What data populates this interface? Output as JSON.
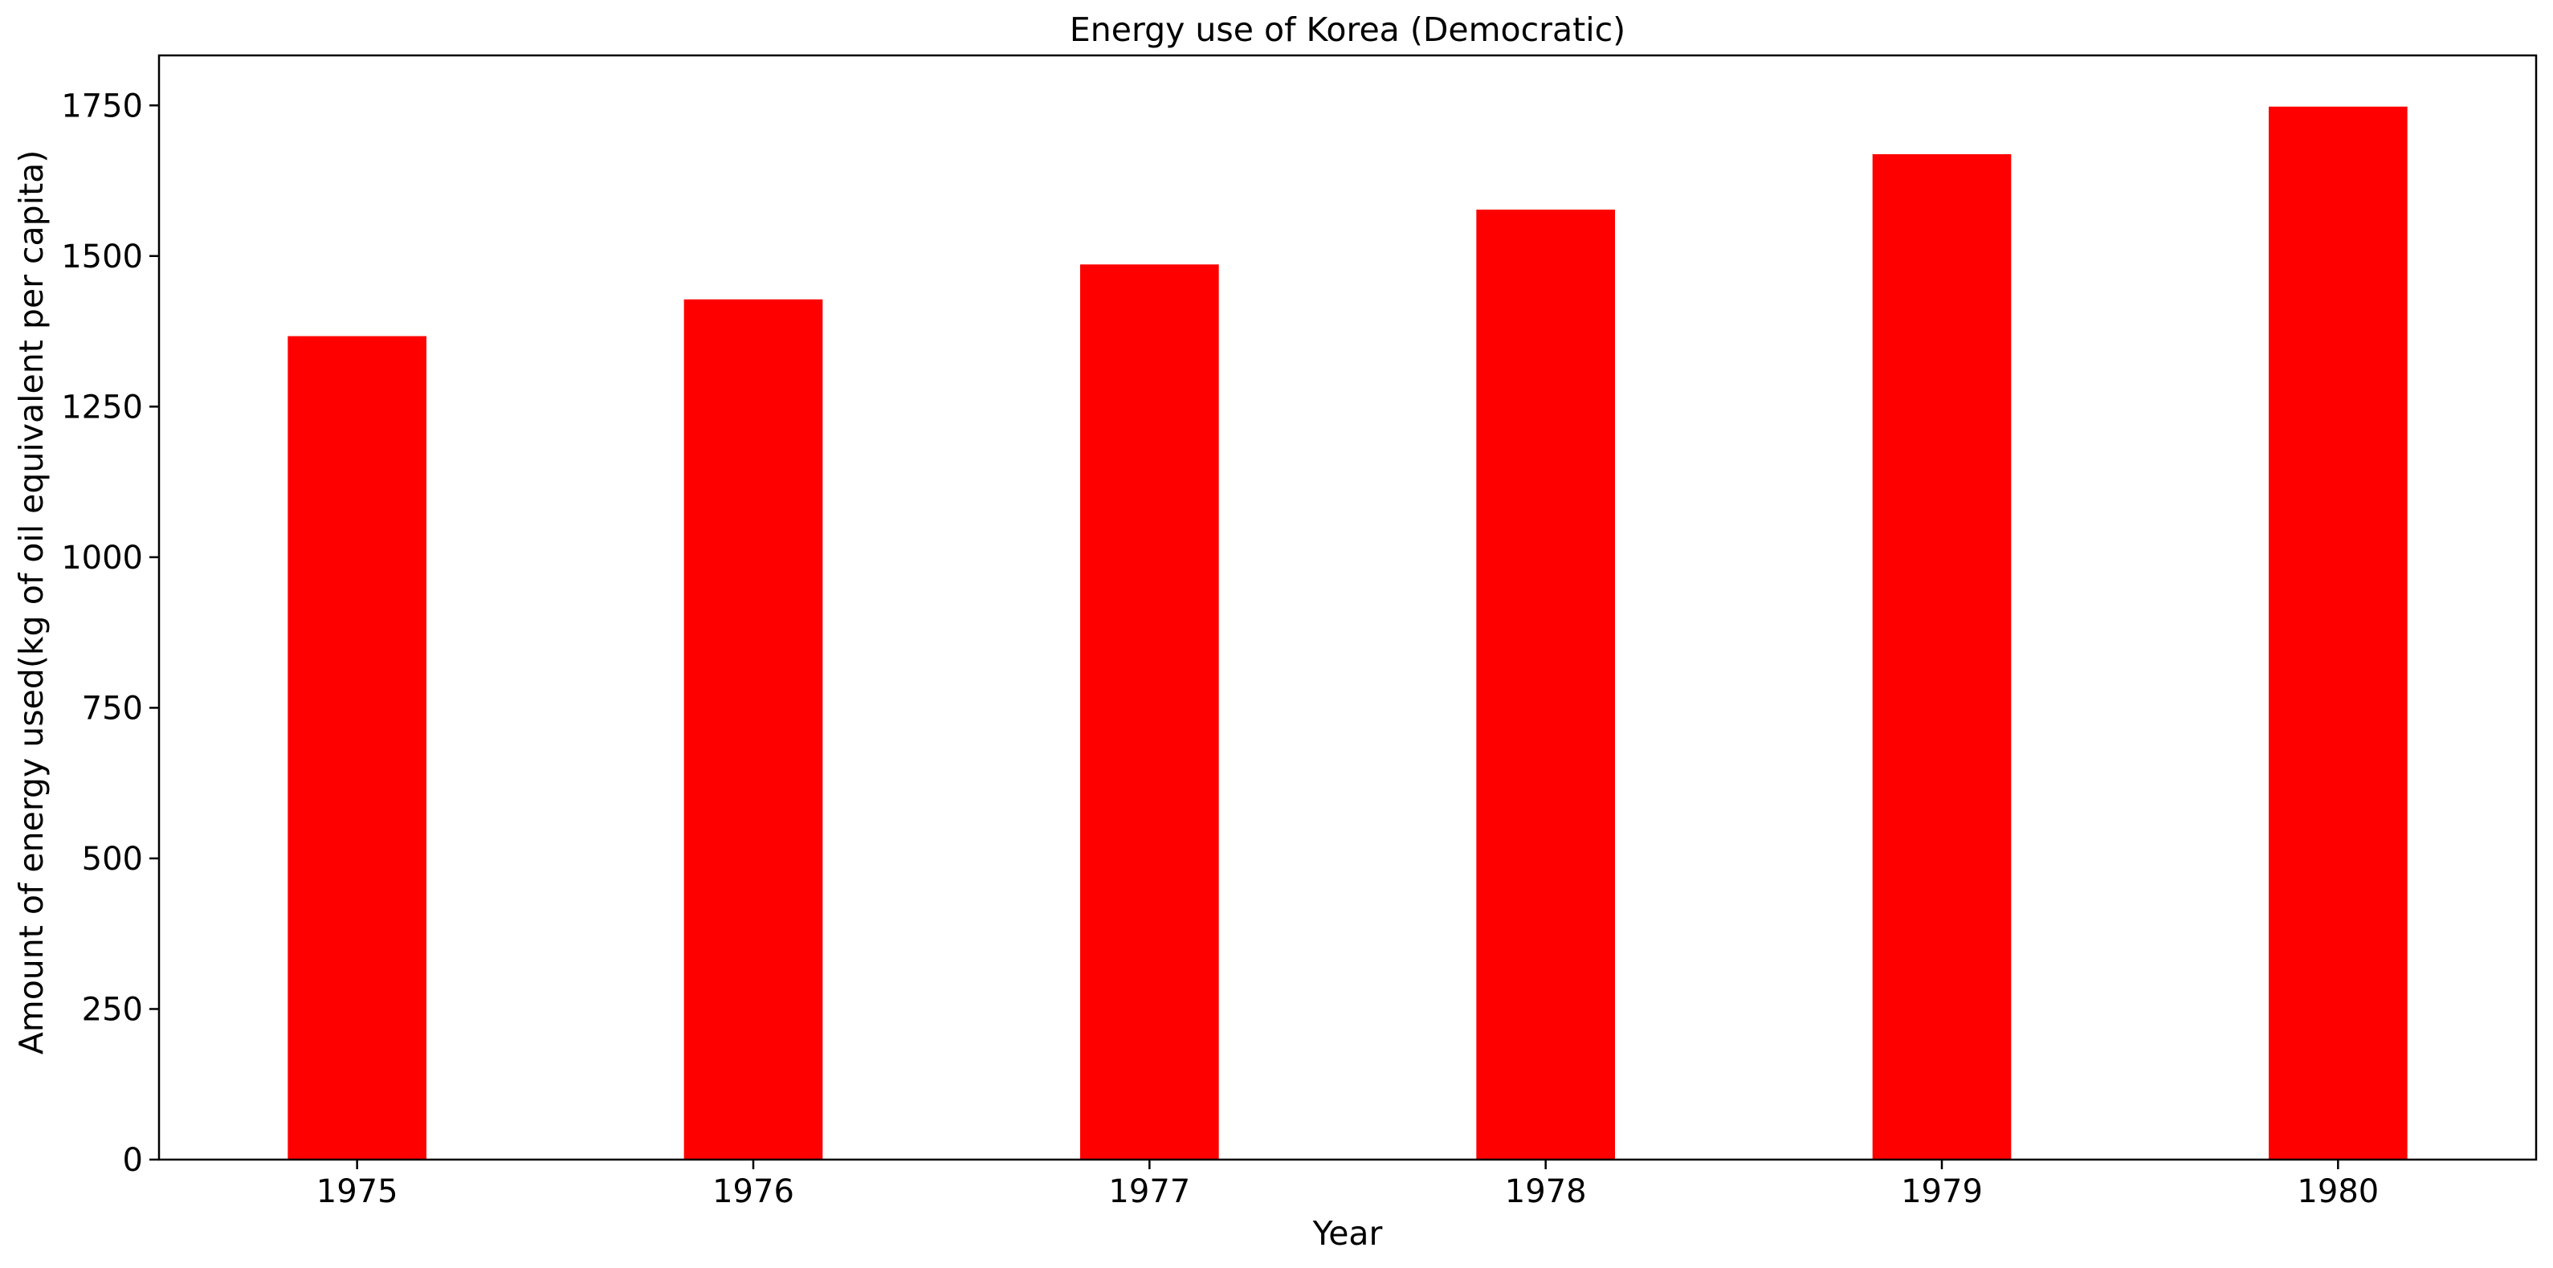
{
  "chart_data": {
    "type": "bar",
    "title": "Energy use of Korea (Democratic)",
    "xlabel": "Year",
    "ylabel": "Amount of energy used(kg of oil equivalent per capita)",
    "categories": [
      "1975",
      "1976",
      "1977",
      "1978",
      "1979",
      "1980"
    ],
    "series": [
      {
        "values": [
          1367,
          1428,
          1486,
          1577,
          1669,
          1748
        ],
        "color": "#ff0000"
      }
    ],
    "ylim": [
      0,
      1833
    ],
    "yticks": [
      0,
      250,
      500,
      750,
      1000,
      1250,
      1500,
      1750
    ],
    "grid": false,
    "legend": "none"
  }
}
